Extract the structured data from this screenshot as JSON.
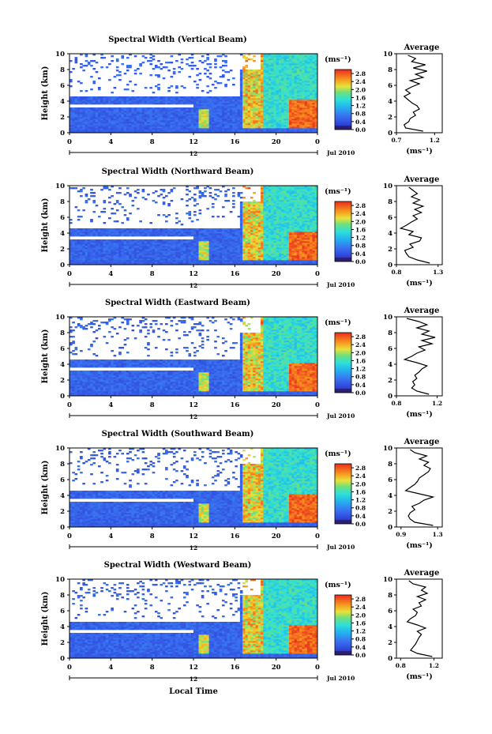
{
  "figure": {
    "xlabel": "Local Time",
    "date_label": "Jul 2010",
    "day_marker": "12",
    "colorbar_unit": "(ms⁻¹)",
    "avg_xlabel": "(ms⁻¹)",
    "avg_title": "Average"
  },
  "chart_data": [
    {
      "type": "heatmap",
      "title": "Spectral Width (Vertical Beam)",
      "ylabel": "Height (km)",
      "xlabel": "Local Time",
      "x_ticks": [
        "0",
        "4",
        "8",
        "12",
        "16",
        "20",
        "0"
      ],
      "xlim": [
        0,
        24
      ],
      "y_ticks": [
        "0",
        "2",
        "4",
        "6",
        "8",
        "10"
      ],
      "ylim": [
        0,
        10
      ],
      "colorbar": {
        "ticks": [
          "0.0",
          "0.4",
          "0.8",
          "1.2",
          "1.6",
          "2.0",
          "2.4",
          "2.8"
        ],
        "range": [
          0,
          3.0
        ]
      },
      "average_profile": {
        "title": "Average",
        "x_ticks": [
          "0.7",
          "1.2"
        ],
        "xlim": [
          0.7,
          1.3
        ],
        "ylim": [
          0,
          10
        ],
        "heights": [
          0.2,
          0.6,
          1.0,
          1.4,
          1.8,
          2.2,
          2.6,
          3.0,
          3.4,
          3.8,
          4.2,
          4.6,
          5.0,
          5.4,
          5.8,
          6.2,
          6.6,
          7.0,
          7.4,
          7.8,
          8.2,
          8.6,
          9.0,
          9.4,
          9.8
        ],
        "values": [
          1.05,
          0.82,
          0.8,
          0.86,
          0.88,
          0.95,
          0.92,
          1.0,
          0.97,
          0.9,
          0.85,
          0.8,
          0.88,
          0.82,
          0.9,
          1.0,
          0.88,
          1.05,
          0.95,
          1.1,
          0.92,
          1.08,
          0.9,
          0.95,
          0.85
        ]
      }
    },
    {
      "type": "heatmap",
      "title": "Spectral Width (Northward Beam)",
      "ylabel": "Height (km)",
      "xlabel": "Local Time",
      "x_ticks": [
        "0",
        "4",
        "8",
        "12",
        "16",
        "20",
        "0"
      ],
      "xlim": [
        0,
        24
      ],
      "y_ticks": [
        "0",
        "2",
        "4",
        "6",
        "8",
        "10"
      ],
      "ylim": [
        0,
        10
      ],
      "colorbar": {
        "ticks": [
          "0.0",
          "0.4",
          "0.8",
          "1.2",
          "1.6",
          "2.0",
          "2.4",
          "2.8"
        ],
        "range": [
          0,
          3.0
        ]
      },
      "average_profile": {
        "title": "Average",
        "x_ticks": [
          "0.8",
          "1.3"
        ],
        "xlim": [
          0.8,
          1.35
        ],
        "ylim": [
          0,
          10
        ],
        "heights": [
          0.2,
          0.6,
          1.0,
          1.4,
          1.8,
          2.2,
          2.6,
          3.0,
          3.4,
          3.8,
          4.2,
          4.6,
          5.0,
          5.4,
          5.8,
          6.2,
          6.6,
          7.0,
          7.4,
          7.8,
          8.2,
          8.6,
          9.0,
          9.4,
          9.8
        ],
        "values": [
          1.2,
          1.05,
          0.95,
          0.92,
          0.9,
          1.0,
          0.96,
          1.08,
          1.1,
          0.95,
          1.0,
          0.85,
          0.92,
          0.98,
          1.05,
          1.0,
          1.1,
          1.02,
          1.12,
          1.0,
          1.08,
          0.98,
          1.05,
          1.0,
          0.95
        ]
      }
    },
    {
      "type": "heatmap",
      "title": "Spectral Width (Eastward Beam)",
      "ylabel": "Height (km)",
      "xlabel": "Local Time",
      "x_ticks": [
        "0",
        "4",
        "8",
        "12",
        "16",
        "20",
        "0"
      ],
      "xlim": [
        0,
        24
      ],
      "y_ticks": [
        "0",
        "2",
        "4",
        "6",
        "8",
        "10"
      ],
      "ylim": [
        0,
        10
      ],
      "colorbar": {
        "ticks": [
          "0.0",
          "0.4",
          "0.8",
          "1.2",
          "1.6",
          "2.0",
          "2.4",
          "2.8"
        ],
        "range": [
          0,
          3.0
        ]
      },
      "average_profile": {
        "title": "Average",
        "x_ticks": [
          "0.8",
          "1.2"
        ],
        "xlim": [
          0.8,
          1.25
        ],
        "ylim": [
          0,
          10
        ],
        "heights": [
          0.2,
          0.6,
          1.0,
          1.4,
          1.8,
          2.2,
          2.6,
          3.0,
          3.4,
          3.8,
          4.2,
          4.6,
          5.0,
          5.4,
          5.8,
          6.2,
          6.6,
          7.0,
          7.4,
          7.8,
          8.2,
          8.6,
          9.0,
          9.4,
          9.8
        ],
        "values": [
          1.12,
          1.0,
          0.95,
          0.98,
          0.96,
          1.0,
          0.98,
          1.02,
          1.05,
          1.1,
          1.0,
          0.88,
          0.95,
          1.0,
          1.08,
          1.02,
          1.15,
          1.05,
          1.18,
          1.05,
          1.12,
          1.0,
          1.1,
          1.02,
          0.9
        ]
      }
    },
    {
      "type": "heatmap",
      "title": "Spectral Width (Southward Beam)",
      "ylabel": "Height (km)",
      "xlabel": "Local Time",
      "x_ticks": [
        "0",
        "4",
        "8",
        "12",
        "16",
        "20",
        "0"
      ],
      "xlim": [
        0,
        24
      ],
      "y_ticks": [
        "0",
        "2",
        "4",
        "6",
        "8",
        "10"
      ],
      "ylim": [
        0,
        10
      ],
      "colorbar": {
        "ticks": [
          "0.0",
          "0.4",
          "0.8",
          "1.2",
          "1.6",
          "2.0",
          "2.4",
          "2.8"
        ],
        "range": [
          0,
          3.0
        ]
      },
      "average_profile": {
        "title": "Average",
        "x_ticks": [
          "0.9",
          "1.3"
        ],
        "xlim": [
          0.85,
          1.35
        ],
        "ylim": [
          0,
          10
        ],
        "heights": [
          0.2,
          0.6,
          1.0,
          1.4,
          1.8,
          2.2,
          2.6,
          3.0,
          3.4,
          3.8,
          4.2,
          4.6,
          5.0,
          5.4,
          5.8,
          6.2,
          6.6,
          7.0,
          7.4,
          7.8,
          8.2,
          8.6,
          9.0,
          9.4,
          9.8
        ],
        "values": [
          1.25,
          1.05,
          1.0,
          0.98,
          1.0,
          1.05,
          1.02,
          1.1,
          1.15,
          1.25,
          1.1,
          0.95,
          1.0,
          1.05,
          1.08,
          1.1,
          1.15,
          1.2,
          1.22,
          1.15,
          1.2,
          1.1,
          1.18,
          1.05,
          1.0
        ]
      }
    },
    {
      "type": "heatmap",
      "title": "Spectral Width (Westward Beam)",
      "ylabel": "Height (km)",
      "xlabel": "Local Time",
      "x_ticks": [
        "0",
        "4",
        "8",
        "12",
        "16",
        "20",
        "0"
      ],
      "xlim": [
        0,
        24
      ],
      "y_ticks": [
        "0",
        "2",
        "4",
        "6",
        "8",
        "10"
      ],
      "ylim": [
        0,
        10
      ],
      "colorbar": {
        "ticks": [
          "0.0",
          "0.4",
          "0.8",
          "1.2",
          "1.6",
          "2.0",
          "2.4",
          "2.8"
        ],
        "range": [
          0,
          3.0
        ]
      },
      "average_profile": {
        "title": "Average",
        "x_ticks": [
          "0.8",
          "1.2"
        ],
        "xlim": [
          0.75,
          1.3
        ],
        "ylim": [
          0,
          10
        ],
        "heights": [
          0.2,
          0.6,
          1.0,
          1.4,
          1.8,
          2.2,
          2.6,
          3.0,
          3.4,
          3.8,
          4.2,
          4.6,
          5.0,
          5.4,
          5.8,
          6.2,
          6.6,
          7.0,
          7.4,
          7.8,
          8.2,
          8.6,
          9.0,
          9.4,
          9.8
        ],
        "values": [
          1.18,
          1.0,
          0.92,
          0.95,
          0.98,
          1.0,
          1.02,
          1.05,
          1.0,
          1.1,
          1.0,
          0.88,
          0.92,
          0.98,
          1.0,
          0.95,
          1.05,
          1.02,
          1.1,
          1.0,
          1.12,
          1.05,
          1.1,
          0.95,
          0.9
        ]
      }
    }
  ]
}
